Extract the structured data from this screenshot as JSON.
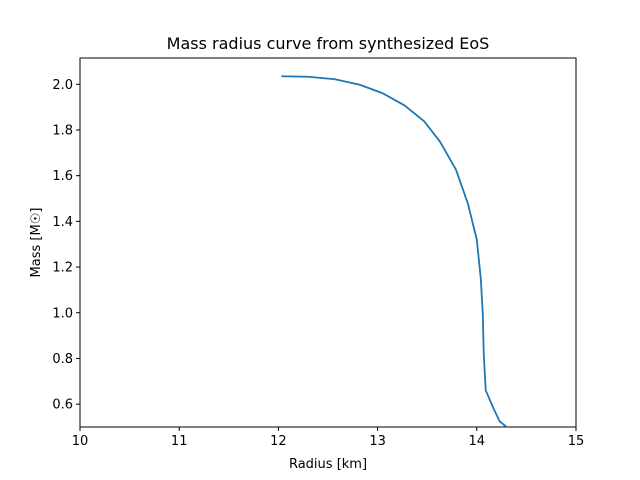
{
  "chart_data": {
    "type": "line",
    "title": "Mass radius curve from synthesized EoS",
    "xlabel": "Radius [km]",
    "ylabel": "Mass [M☉]",
    "xlim": [
      10,
      15
    ],
    "ylim": [
      0.5,
      2.115
    ],
    "xticks": [
      10,
      11,
      12,
      13,
      14,
      15
    ],
    "xtick_labels": [
      "10",
      "11",
      "12",
      "13",
      "14",
      "15"
    ],
    "yticks": [
      0.6,
      0.8,
      1.0,
      1.2,
      1.4,
      1.6,
      1.8,
      2.0
    ],
    "ytick_labels": [
      "0.6",
      "0.8",
      "1.0",
      "1.2",
      "1.4",
      "1.6",
      "1.8",
      "2.0"
    ],
    "grid": false,
    "series": [
      {
        "color": "#1f77b4",
        "x": [
          12.03,
          12.3,
          12.57,
          12.82,
          13.05,
          13.27,
          13.47,
          13.63,
          13.79,
          13.91,
          14.0,
          14.04,
          14.06,
          14.07,
          14.09,
          14.17,
          14.23,
          14.3
        ],
        "y": [
          2.035,
          2.033,
          2.022,
          1.998,
          1.961,
          1.908,
          1.838,
          1.748,
          1.626,
          1.478,
          1.32,
          1.15,
          1.0,
          0.82,
          0.66,
          0.58,
          0.525,
          0.5
        ]
      }
    ]
  }
}
